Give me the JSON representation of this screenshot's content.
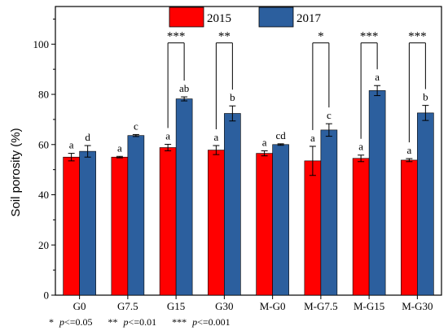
{
  "chart_data": {
    "type": "bar",
    "ylabel": "Soil porosity (%)",
    "ylim": [
      0,
      115
    ],
    "yticks": [
      0,
      20,
      40,
      60,
      80,
      100
    ],
    "categories": [
      "G0",
      "G7.5",
      "G15",
      "G30",
      "M-G0",
      "M-G7.5",
      "M-G15",
      "M-G30"
    ],
    "legend_position": "top-center",
    "series": [
      {
        "name": "2015",
        "color": "#ff0000",
        "values": [
          55.0,
          55.0,
          58.8,
          57.8,
          56.5,
          53.5,
          54.5,
          53.8
        ],
        "errors": [
          1.5,
          0.3,
          1.3,
          1.8,
          1.0,
          5.8,
          1.3,
          0.6
        ],
        "letters": [
          "a",
          "a",
          "a",
          "a",
          "a",
          "a",
          "a",
          "a"
        ]
      },
      {
        "name": "2017",
        "color": "#2c5f9e",
        "values": [
          57.3,
          63.6,
          78.2,
          72.4,
          60.0,
          65.8,
          81.5,
          72.6
        ],
        "errors": [
          2.3,
          0.4,
          0.8,
          3.0,
          0.3,
          2.5,
          2.0,
          3.0
        ],
        "letters": [
          "d",
          "c",
          "ab",
          "b",
          "cd",
          "c",
          "a",
          "b"
        ]
      }
    ],
    "significance": [
      {
        "category": "G15",
        "label": "***"
      },
      {
        "category": "G30",
        "label": "**"
      },
      {
        "category": "M-G7.5",
        "label": "*"
      },
      {
        "category": "M-G15",
        "label": "***"
      },
      {
        "category": "M-G30",
        "label": "***"
      }
    ]
  },
  "footnote": {
    "p1_stars": "*",
    "p1_text": "<=0.05",
    "p2_stars": "**",
    "p2_text": "<=0.01",
    "p3_stars": "***",
    "p3_text": "<=0.001",
    "p_symbol": "p"
  }
}
